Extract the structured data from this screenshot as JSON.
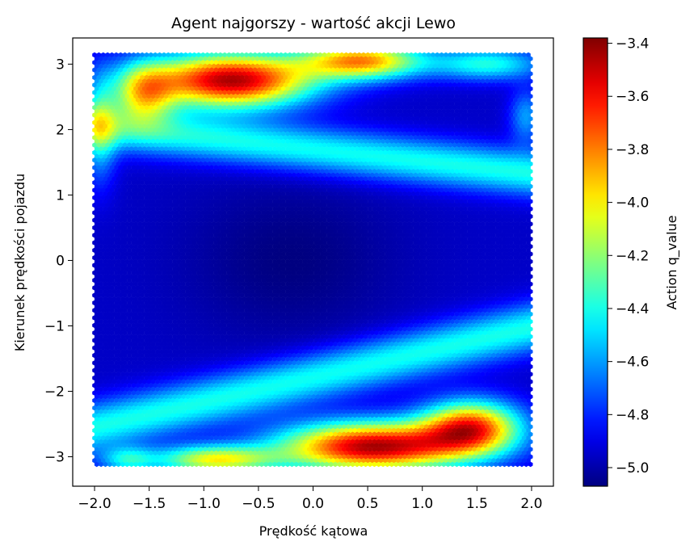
{
  "chart_data": {
    "type": "heatmap",
    "subtype": "hexbin",
    "title": "Agent najgorszy - wartość akcji Lewo",
    "xlabel": "Prędkość kątowa",
    "ylabel": "Kierunek prędkości pojazdu",
    "colorbar_label": "Action q_value",
    "colormap": "jet",
    "xlim": [
      -2.2,
      2.2
    ],
    "ylim": [
      -3.45,
      3.4
    ],
    "x_ticks": [
      -2.0,
      -1.5,
      -1.0,
      -0.5,
      0.0,
      0.5,
      1.0,
      1.5,
      2.0
    ],
    "x_tick_labels": [
      "−2.0",
      "−1.5",
      "−1.0",
      "−0.5",
      "0.0",
      "0.5",
      "1.0",
      "1.5",
      "2.0"
    ],
    "y_ticks": [
      -3,
      -2,
      -1,
      0,
      1,
      2,
      3
    ],
    "y_tick_labels": [
      "−3",
      "−2",
      "−1",
      "0",
      "1",
      "2",
      "3"
    ],
    "data_x_range": [
      -2.0,
      2.0
    ],
    "data_y_range": [
      -3.14,
      3.14
    ],
    "colorbar_range": [
      -5.07,
      -3.38
    ],
    "colorbar_ticks": [
      -5.0,
      -4.8,
      -4.6,
      -4.4,
      -4.2,
      -4.0,
      -3.8,
      -3.6,
      -3.4
    ],
    "colorbar_tick_labels": [
      "−5.0",
      "−4.8",
      "−4.6",
      "−4.4",
      "−4.2",
      "−4.0",
      "−3.8",
      "−3.6",
      "−3.4"
    ],
    "grid": false,
    "field_description": [
      {
        "region": "top band (y 2.2 to 3.14)",
        "approx_q_value": -3.45,
        "peak_near": {
          "x": -0.7,
          "y": 2.75
        }
      },
      {
        "region": "bottom band (y -3.14 to -2.3)",
        "approx_q_value": -3.45,
        "peak_near": {
          "x": 0.6,
          "y": -2.85
        }
      },
      {
        "region": "central diagonal zone",
        "approx_q_value": -4.85
      },
      {
        "region": "transition ridge",
        "approx_q_value": -4.1
      }
    ]
  }
}
